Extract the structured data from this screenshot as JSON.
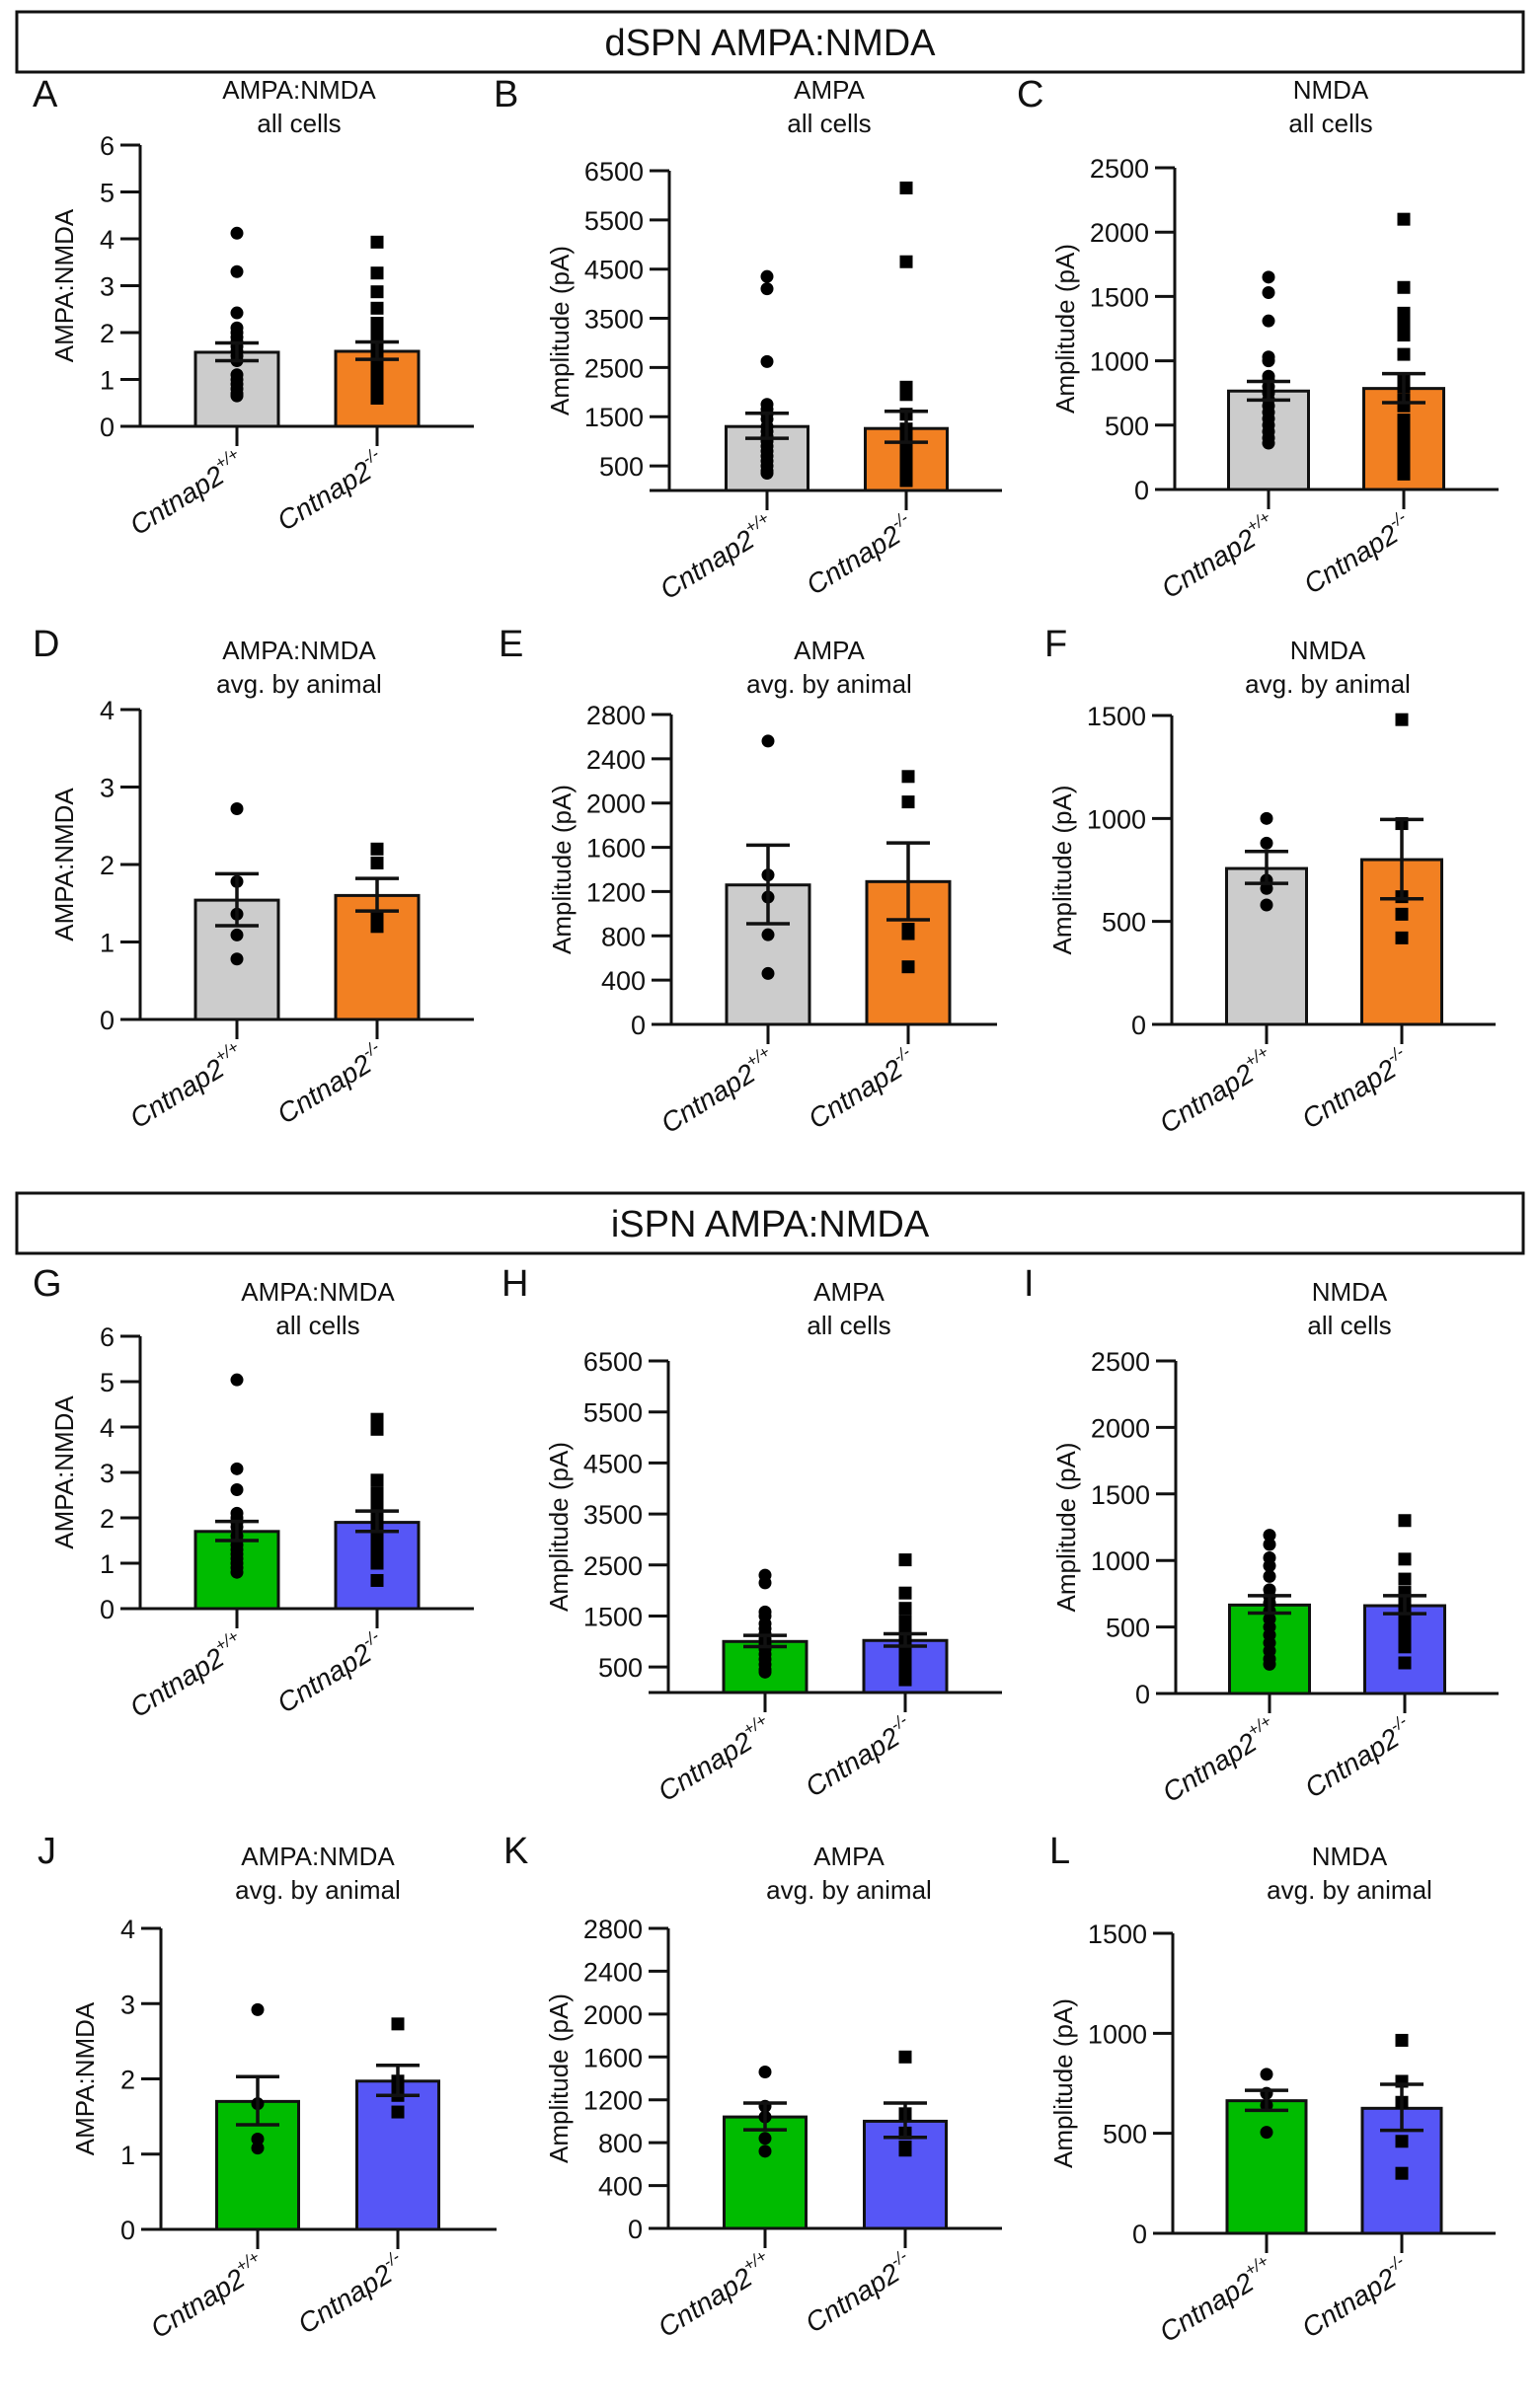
{
  "figure": {
    "sections": [
      {
        "id": "dspn",
        "title": "dSPN AMPA:NMDA"
      },
      {
        "id": "ispn",
        "title": "iSPN AMPA:NMDA"
      }
    ],
    "group_labels": [
      {
        "base": "Cntnap2",
        "sup": "+/+"
      },
      {
        "base": "Cntnap2",
        "sup": "-/-"
      }
    ],
    "colors": {
      "dspn_wt": "#CCCCCC",
      "dspn_ko": "#F28022",
      "ispn_wt": "#00BB00",
      "ispn_ko": "#5656F6",
      "points": "#000000"
    }
  },
  "chart_data": [
    {
      "panel": "A",
      "section": "dspn",
      "type": "bar",
      "title": [
        "AMPA:NMDA",
        "all cells"
      ],
      "ylabel": "AMPA:NMDA",
      "ylim": [
        0,
        6
      ],
      "yticks": [
        0,
        1,
        2,
        3,
        4,
        5,
        6
      ],
      "categories": [
        "Cntnap2+/+",
        "Cntnap2-/-"
      ],
      "series": [
        {
          "name": "Cntnap2+/+",
          "mean": 1.58,
          "sem_low": 1.4,
          "sem_high": 1.78,
          "marker": "circle",
          "points": [
            4.12,
            3.3,
            2.42,
            2.1,
            2.0,
            1.9,
            1.8,
            1.7,
            1.6,
            1.5,
            1.4,
            1.1,
            1.0,
            0.9,
            0.8,
            0.7,
            0.65
          ]
        },
        {
          "name": "Cntnap2-/-",
          "mean": 1.6,
          "sem_low": 1.43,
          "sem_high": 1.8,
          "marker": "square",
          "points": [
            3.93,
            3.27,
            2.87,
            2.52,
            2.2,
            2.0,
            1.8,
            1.7,
            1.6,
            1.5,
            1.4,
            1.3,
            1.2,
            1.1,
            1.0,
            0.9,
            0.8,
            0.7,
            0.6
          ]
        }
      ]
    },
    {
      "panel": "B",
      "section": "dspn",
      "type": "bar",
      "title": [
        "AMPA",
        "all cells"
      ],
      "ylabel": "Amplitude (pA)",
      "ylim": [
        0,
        6500
      ],
      "yticks": [
        500,
        1500,
        2500,
        3500,
        4500,
        5500,
        6500
      ],
      "categories": [
        "Cntnap2+/+",
        "Cntnap2-/-"
      ],
      "series": [
        {
          "name": "Cntnap2+/+",
          "mean": 1300,
          "sem_low": 1060,
          "sem_high": 1570,
          "marker": "circle",
          "points": [
            4350,
            4100,
            2620,
            1750,
            1650,
            1550,
            1450,
            1300,
            1200,
            1100,
            1000,
            900,
            800,
            700,
            600,
            500,
            400,
            350
          ]
        },
        {
          "name": "Cntnap2-/-",
          "mean": 1260,
          "sem_low": 980,
          "sem_high": 1610,
          "marker": "square",
          "points": [
            6150,
            4650,
            2100,
            1950,
            1550,
            1250,
            1000,
            900,
            800,
            700,
            600,
            500,
            400,
            300,
            250,
            200
          ]
        }
      ]
    },
    {
      "panel": "C",
      "section": "dspn",
      "type": "bar",
      "title": [
        "NMDA",
        "all cells"
      ],
      "ylabel": "Amplitude (pA)",
      "ylim": [
        0,
        2500
      ],
      "yticks": [
        0,
        500,
        1000,
        1500,
        2000,
        2500
      ],
      "categories": [
        "Cntnap2+/+",
        "Cntnap2-/-"
      ],
      "series": [
        {
          "name": "Cntnap2+/+",
          "mean": 765,
          "sem_low": 695,
          "sem_high": 840,
          "marker": "circle",
          "points": [
            1650,
            1530,
            1310,
            1030,
            1000,
            880,
            850,
            800,
            750,
            700,
            650,
            600,
            550,
            500,
            450,
            400,
            360
          ]
        },
        {
          "name": "Cntnap2-/-",
          "mean": 785,
          "sem_low": 675,
          "sem_high": 900,
          "marker": "square",
          "points": [
            2100,
            1570,
            1370,
            1300,
            1250,
            1200,
            1050,
            850,
            800,
            700,
            650,
            540,
            480,
            420,
            360,
            300,
            240,
            180,
            120
          ]
        }
      ]
    },
    {
      "panel": "D",
      "section": "dspn",
      "type": "bar",
      "title": [
        "AMPA:NMDA",
        "avg. by animal"
      ],
      "ylabel": "AMPA:NMDA",
      "ylim": [
        0,
        4
      ],
      "yticks": [
        0,
        1,
        2,
        3,
        4
      ],
      "categories": [
        "Cntnap2+/+",
        "Cntnap2-/-"
      ],
      "series": [
        {
          "name": "Cntnap2+/+",
          "mean": 1.54,
          "sem_low": 1.21,
          "sem_high": 1.88,
          "marker": "circle",
          "points": [
            2.72,
            1.78,
            1.36,
            1.09,
            0.78
          ]
        },
        {
          "name": "Cntnap2-/-",
          "mean": 1.6,
          "sem_low": 1.4,
          "sem_high": 1.82,
          "marker": "square",
          "points": [
            2.2,
            2.02,
            1.3,
            1.2
          ]
        }
      ]
    },
    {
      "panel": "E",
      "section": "dspn",
      "type": "bar",
      "title": [
        "AMPA",
        "avg. by animal"
      ],
      "ylabel": "Amplitude (pA)",
      "ylim": [
        0,
        2800
      ],
      "yticks": [
        0,
        400,
        800,
        1200,
        1600,
        2000,
        2400,
        2800
      ],
      "categories": [
        "Cntnap2+/+",
        "Cntnap2-/-"
      ],
      "series": [
        {
          "name": "Cntnap2+/+",
          "mean": 1260,
          "sem_low": 910,
          "sem_high": 1620,
          "marker": "circle",
          "points": [
            2560,
            1350,
            1150,
            810,
            460
          ]
        },
        {
          "name": "Cntnap2-/-",
          "mean": 1290,
          "sem_low": 945,
          "sem_high": 1640,
          "marker": "square",
          "points": [
            2240,
            2010,
            860,
            820,
            520
          ]
        }
      ]
    },
    {
      "panel": "F",
      "section": "dspn",
      "type": "bar",
      "title": [
        "NMDA",
        "avg. by animal"
      ],
      "ylabel": "Amplitude (pA)",
      "ylim": [
        0,
        1500
      ],
      "yticks": [
        0,
        500,
        1000,
        1500
      ],
      "categories": [
        "Cntnap2+/+",
        "Cntnap2-/-"
      ],
      "series": [
        {
          "name": "Cntnap2+/+",
          "mean": 757,
          "sem_low": 685,
          "sem_high": 840,
          "marker": "circle",
          "points": [
            1000,
            880,
            700,
            660,
            580
          ]
        },
        {
          "name": "Cntnap2-/-",
          "mean": 800,
          "sem_low": 610,
          "sem_high": 995,
          "marker": "square",
          "points": [
            1480,
            975,
            620,
            535,
            420
          ]
        }
      ]
    },
    {
      "panel": "G",
      "section": "ispn",
      "type": "bar",
      "title": [
        "AMPA:NMDA",
        "all cells"
      ],
      "ylabel": "AMPA:NMDA",
      "ylim": [
        0,
        6
      ],
      "yticks": [
        0,
        1,
        2,
        3,
        4,
        5,
        6
      ],
      "categories": [
        "Cntnap2+/+",
        "Cntnap2-/-"
      ],
      "series": [
        {
          "name": "Cntnap2+/+",
          "mean": 1.7,
          "sem_low": 1.5,
          "sem_high": 1.92,
          "marker": "circle",
          "points": [
            5.04,
            3.08,
            2.62,
            2.1,
            2.0,
            1.9,
            1.8,
            1.6,
            1.5,
            1.4,
            1.3,
            1.2,
            1.1,
            1.0,
            0.9,
            0.8
          ]
        },
        {
          "name": "Cntnap2-/-",
          "mean": 1.9,
          "sem_low": 1.7,
          "sem_high": 2.15,
          "marker": "square",
          "points": [
            4.17,
            3.95,
            2.83,
            2.55,
            2.3,
            2.1,
            2.0,
            1.9,
            1.8,
            1.7,
            1.6,
            1.5,
            1.4,
            1.3,
            1.2,
            1.1,
            1.0,
            0.62
          ]
        }
      ]
    },
    {
      "panel": "H",
      "section": "ispn",
      "type": "bar",
      "title": [
        "AMPA",
        "all cells"
      ],
      "ylabel": "Amplitude (pA)",
      "ylim": [
        0,
        6500
      ],
      "yticks": [
        500,
        1500,
        2500,
        3500,
        4500,
        5500,
        6500
      ],
      "categories": [
        "Cntnap2+/+",
        "Cntnap2-/-"
      ],
      "series": [
        {
          "name": "Cntnap2+/+",
          "mean": 1000,
          "sem_low": 900,
          "sem_high": 1120,
          "marker": "circle",
          "points": [
            2300,
            2150,
            1580,
            1500,
            1350,
            1250,
            1150,
            1050,
            950,
            850,
            750,
            650,
            550,
            450,
            400
          ]
        },
        {
          "name": "Cntnap2-/-",
          "mean": 1020,
          "sem_low": 910,
          "sem_high": 1150,
          "marker": "square",
          "points": [
            2600,
            1950,
            1650,
            1400,
            1300,
            1200,
            1100,
            1000,
            900,
            800,
            700,
            600,
            500,
            400,
            250
          ]
        }
      ]
    },
    {
      "panel": "I",
      "section": "ispn",
      "type": "bar",
      "title": [
        "NMDA",
        "all cells"
      ],
      "ylabel": "Amplitude (pA)",
      "ylim": [
        0,
        2500
      ],
      "yticks": [
        0,
        500,
        1000,
        1500,
        2000,
        2500
      ],
      "categories": [
        "Cntnap2+/+",
        "Cntnap2-/-"
      ],
      "series": [
        {
          "name": "Cntnap2+/+",
          "mean": 665,
          "sem_low": 605,
          "sem_high": 735,
          "marker": "circle",
          "points": [
            1190,
            1120,
            1020,
            960,
            880,
            780,
            730,
            680,
            620,
            560,
            500,
            440,
            380,
            320,
            260,
            220
          ]
        },
        {
          "name": "Cntnap2-/-",
          "mean": 660,
          "sem_low": 600,
          "sem_high": 735,
          "marker": "square",
          "points": [
            1300,
            1010,
            860,
            760,
            700,
            650,
            600,
            550,
            500,
            450,
            400,
            350,
            230
          ]
        }
      ]
    },
    {
      "panel": "J",
      "section": "ispn",
      "type": "bar",
      "title": [
        "AMPA:NMDA",
        "avg. by animal"
      ],
      "ylabel": "AMPA:NMDA",
      "ylim": [
        0,
        4
      ],
      "yticks": [
        0,
        1,
        2,
        3,
        4
      ],
      "categories": [
        "Cntnap2+/+",
        "Cntnap2-/-"
      ],
      "series": [
        {
          "name": "Cntnap2+/+",
          "mean": 1.7,
          "sem_low": 1.39,
          "sem_high": 2.03,
          "marker": "circle",
          "points": [
            2.92,
            1.67,
            1.2,
            1.08
          ]
        },
        {
          "name": "Cntnap2-/-",
          "mean": 1.97,
          "sem_low": 1.78,
          "sem_high": 2.18,
          "marker": "square",
          "points": [
            2.73,
            1.97,
            1.85,
            1.78,
            1.56
          ]
        }
      ]
    },
    {
      "panel": "K",
      "section": "ispn",
      "type": "bar",
      "title": [
        "AMPA",
        "avg. by animal"
      ],
      "ylabel": "Amplitude (pA)",
      "ylim": [
        0,
        2800
      ],
      "yticks": [
        0,
        400,
        800,
        1200,
        1600,
        2000,
        2400,
        2800
      ],
      "categories": [
        "Cntnap2+/+",
        "Cntnap2-/-"
      ],
      "series": [
        {
          "name": "Cntnap2+/+",
          "mean": 1040,
          "sem_low": 920,
          "sem_high": 1170,
          "marker": "circle",
          "points": [
            1460,
            1140,
            1040,
            840,
            720
          ]
        },
        {
          "name": "Cntnap2-/-",
          "mean": 1000,
          "sem_low": 850,
          "sem_high": 1170,
          "marker": "square",
          "points": [
            1600,
            1070,
            890,
            760,
            730
          ]
        }
      ]
    },
    {
      "panel": "L",
      "section": "ispn",
      "type": "bar",
      "title": [
        "NMDA",
        "avg. by animal"
      ],
      "ylabel": "Amplitude (pA)",
      "ylim": [
        0,
        1500
      ],
      "yticks": [
        0,
        500,
        1000,
        1500
      ],
      "categories": [
        "Cntnap2+/+",
        "Cntnap2-/-"
      ],
      "series": [
        {
          "name": "Cntnap2+/+",
          "mean": 663,
          "sem_low": 615,
          "sem_high": 715,
          "marker": "circle",
          "points": [
            795,
            700,
            640,
            505
          ]
        },
        {
          "name": "Cntnap2-/-",
          "mean": 625,
          "sem_low": 515,
          "sem_high": 745,
          "marker": "square",
          "points": [
            965,
            760,
            655,
            460,
            300
          ]
        }
      ]
    }
  ]
}
